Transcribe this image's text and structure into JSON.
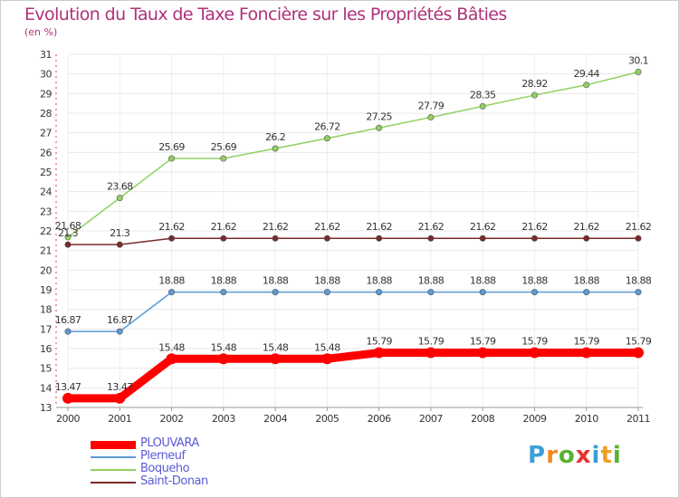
{
  "title": "Evolution du Taux de Taxe Foncière sur les Propriétés Bâties",
  "unit": "(en %)",
  "logo": {
    "letters": [
      "P",
      "r",
      "o",
      "x",
      "i",
      "t",
      "i"
    ],
    "colors": [
      "#3aa0d8",
      "#f28a1c",
      "#5bb130",
      "#e8322f",
      "#3aa0d8",
      "#f0a020",
      "#5bb130"
    ]
  },
  "chart_data": {
    "type": "line",
    "title": "Evolution du Taux de Taxe Foncière sur les Propriétés Bâties",
    "ylabel": "(en %)",
    "xlabel": "",
    "x": [
      "2000",
      "2001",
      "2002",
      "2003",
      "2004",
      "2005",
      "2006",
      "2007",
      "2008",
      "2009",
      "2010",
      "2011"
    ],
    "ylim": [
      13,
      31
    ],
    "yticks": [
      13,
      14,
      15,
      16,
      17,
      18,
      19,
      20,
      21,
      22,
      23,
      24,
      25,
      26,
      27,
      28,
      29,
      30,
      31
    ],
    "legend_position": "bottom-left",
    "series": [
      {
        "name": "PLOUVARA",
        "color": "#ff0000",
        "thick": true,
        "values": [
          13.47,
          13.47,
          15.48,
          15.48,
          15.48,
          15.48,
          15.79,
          15.79,
          15.79,
          15.79,
          15.79,
          15.79
        ],
        "labels": [
          "13.47",
          "13.47",
          "15.48",
          "15.48",
          "15.48",
          "15.48",
          "15.79",
          "15.79",
          "15.79",
          "15.79",
          "15.79",
          "15.79"
        ]
      },
      {
        "name": "Plerneuf",
        "color": "#5b9bd5",
        "thick": false,
        "values": [
          16.87,
          16.87,
          18.88,
          18.88,
          18.88,
          18.88,
          18.88,
          18.88,
          18.88,
          18.88,
          18.88,
          18.88
        ],
        "labels": [
          "16.87",
          "16.87",
          "18.88",
          "18.88",
          "18.88",
          "18.88",
          "18.88",
          "18.88",
          "18.88",
          "18.88",
          "18.88",
          "18.88"
        ]
      },
      {
        "name": "Boqueho",
        "color": "#90d060",
        "thick": false,
        "values": [
          21.68,
          23.68,
          25.69,
          25.69,
          26.2,
          26.72,
          27.25,
          27.79,
          28.35,
          28.92,
          29.44,
          30.1
        ],
        "labels": [
          "21.68",
          "23.68",
          "25.69",
          "25.69",
          "26.2",
          "26.72",
          "27.25",
          "27.79",
          "28.35",
          "28.92",
          "29.44",
          "30.1"
        ]
      },
      {
        "name": "Saint-Donan",
        "color": "#7a2a2a",
        "thick": false,
        "values": [
          21.3,
          21.3,
          21.62,
          21.62,
          21.62,
          21.62,
          21.62,
          21.62,
          21.62,
          21.62,
          21.62,
          21.62
        ],
        "labels": [
          "21.3",
          "21.3",
          "21.62",
          "21.62",
          "21.62",
          "21.62",
          "21.62",
          "21.62",
          "21.62",
          "21.62",
          "21.62",
          "21.62"
        ]
      }
    ]
  }
}
